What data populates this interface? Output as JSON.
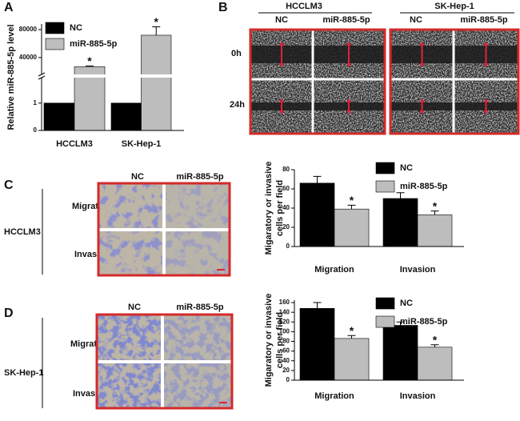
{
  "chart_data": [
    {
      "type": "bar",
      "ylabel": "Relative miR-885-5p level",
      "categories": [
        "HCCLM3",
        "SK-Hep-1"
      ],
      "series": [
        {
          "name": "NC",
          "color": "#000000",
          "values": [
            1,
            1
          ]
        },
        {
          "name": "miR-885-5p",
          "color": "#bdbdbd",
          "values": [
            27000,
            72000
          ],
          "errors": [
            1000,
            12000
          ],
          "significance": [
            "*",
            "*"
          ]
        }
      ],
      "ylim": [
        0,
        1.9
      ],
      "yticks": [
        0,
        1
      ],
      "axis_break": true,
      "ylim_upper": [
        17000,
        88000
      ],
      "yticks_upper": [
        40000,
        80000
      ],
      "legend": "upper left"
    },
    {
      "type": "bar",
      "ylabel": [
        "Migaratory or invasive",
        "cells per field"
      ],
      "categories": [
        "Migration",
        "Invasion"
      ],
      "series": [
        {
          "name": "NC",
          "color": "#000000",
          "values": [
            66,
            50
          ],
          "errors": [
            7,
            6
          ]
        },
        {
          "name": "miR-885-5p",
          "color": "#bdbdbd",
          "values": [
            39,
            33
          ],
          "errors": [
            4,
            4
          ],
          "significance": [
            "*",
            "*"
          ]
        }
      ],
      "ylim": [
        0,
        80
      ],
      "yticks": [
        0,
        20,
        40,
        60,
        80
      ],
      "legend": "upper right"
    },
    {
      "type": "bar",
      "ylabel": [
        "Migaratory or invasive",
        "cells per field"
      ],
      "categories": [
        "Migration",
        "Invasion"
      ],
      "series": [
        {
          "name": "NC",
          "color": "#000000",
          "values": [
            148,
            113
          ],
          "errors": [
            12,
            7
          ]
        },
        {
          "name": "miR-885-5p",
          "color": "#bdbdbd",
          "values": [
            86,
            68
          ],
          "errors": [
            6,
            5
          ],
          "significance": [
            "*",
            "*"
          ]
        }
      ],
      "ylim": [
        0,
        165
      ],
      "yticks": [
        0,
        20,
        40,
        60,
        80,
        100,
        120,
        140,
        160
      ],
      "legend": "upper right"
    }
  ],
  "panels": {
    "letters": [
      "A",
      "B",
      "C",
      "D"
    ],
    "wound": {
      "cell_lines": [
        "HCCLM3",
        "SK-Hep-1"
      ],
      "groups": [
        "NC",
        "miR-885-5p"
      ],
      "times": [
        "0h",
        "24h"
      ]
    },
    "transwell": {
      "cell_lines": [
        "HCCLM3",
        "SK-Hep-1"
      ],
      "groups": [
        "NC",
        "miR-885-5p"
      ],
      "assays": [
        "Migration",
        "Invasion"
      ]
    }
  }
}
